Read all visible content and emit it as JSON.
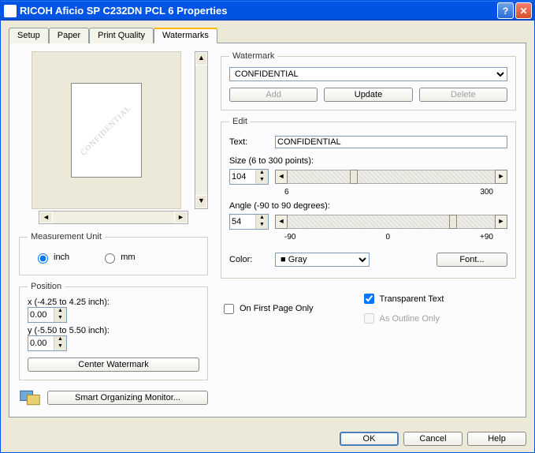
{
  "window": {
    "title": "RICOH Aficio SP C232DN PCL 6 Properties"
  },
  "tabs": [
    "Setup",
    "Paper",
    "Print Quality",
    "Watermarks"
  ],
  "active_tab": "Watermarks",
  "watermark": {
    "legend": "Watermark",
    "selected": "CONFIDENTIAL",
    "buttons": {
      "add": "Add",
      "update": "Update",
      "delete": "Delete"
    }
  },
  "edit": {
    "legend": "Edit",
    "text_label": "Text:",
    "text_value": "CONFIDENTIAL",
    "size_label": "Size (6 to 300 points):",
    "size_value": "104",
    "size_min": "6",
    "size_max": "300",
    "angle_label": "Angle (-90 to 90 degrees):",
    "angle_value": "54",
    "angle_min": "-90",
    "angle_mid": "0",
    "angle_max": "+90",
    "color_label": "Color:",
    "color_value": "Gray",
    "color_hex": "#808080",
    "font_button": "Font..."
  },
  "checks": {
    "first_page": "On First Page Only",
    "first_page_checked": false,
    "transparent": "Transparent Text",
    "transparent_checked": true,
    "outline": "As Outline Only",
    "outline_enabled": false
  },
  "measurement": {
    "legend": "Measurement Unit",
    "inch": "inch",
    "mm": "mm",
    "selected": "inch"
  },
  "position": {
    "legend": "Position",
    "x_label": "x (-4.25 to 4.25 inch):",
    "x_value": "0.00",
    "y_label": "y (-5.50 to 5.50 inch):",
    "y_value": "0.00",
    "center_button": "Center Watermark"
  },
  "smart_button": "Smart Organizing Monitor...",
  "footer": {
    "ok": "OK",
    "cancel": "Cancel",
    "help": "Help"
  },
  "preview_text": "CONFIDENTIAL",
  "colors": {
    "titlebar": "#0054e3",
    "background": "#ece9d8",
    "panel": "#fcfcfe",
    "accent_tab": "#ffb700"
  }
}
